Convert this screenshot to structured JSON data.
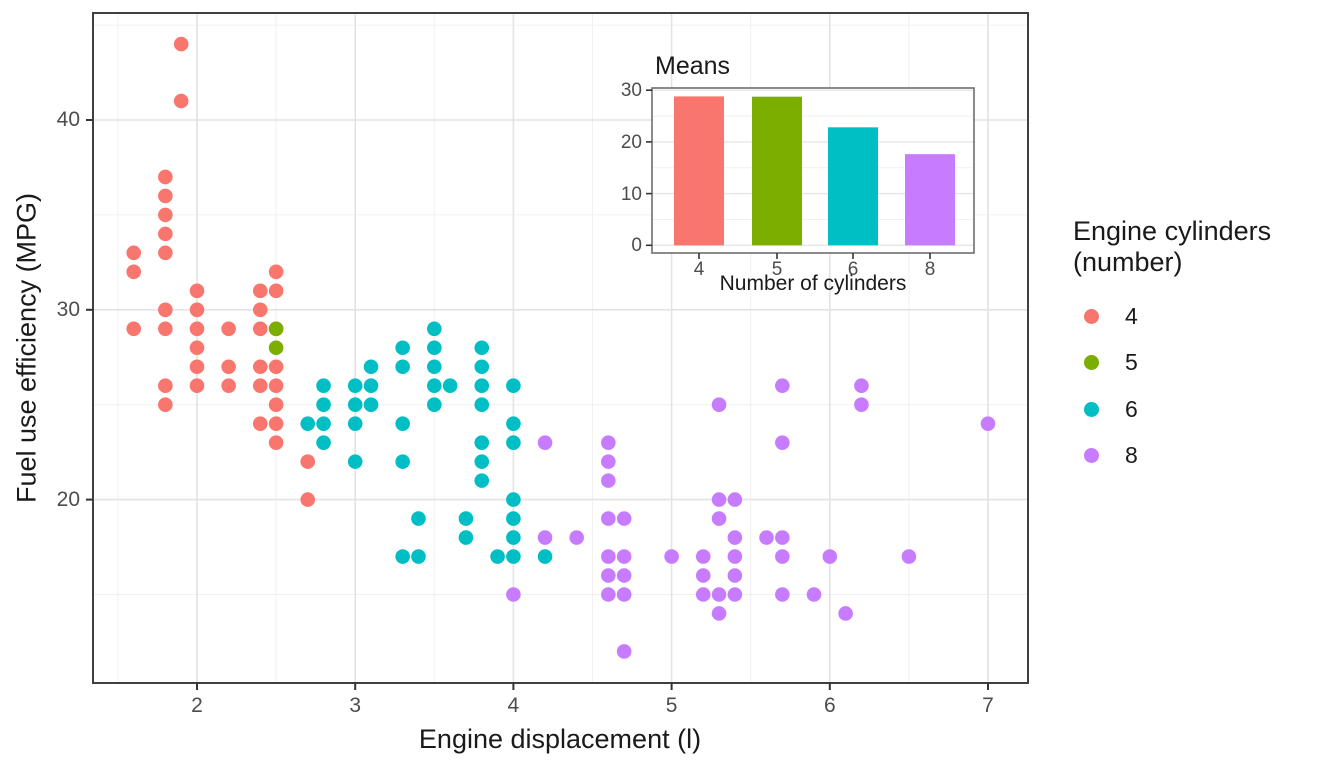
{
  "figure": {
    "background": "#ffffff"
  },
  "palette": {
    "4": "#F8766D",
    "5": "#7CAE00",
    "6": "#00BFC4",
    "8": "#C77CFF"
  },
  "legend": {
    "title_line1": "Engine cylinders",
    "title_line2": "(number)",
    "position": "right",
    "items": [
      {
        "label": "4",
        "color": "#F8766D"
      },
      {
        "label": "5",
        "color": "#7CAE00"
      },
      {
        "label": "6",
        "color": "#00BFC4"
      },
      {
        "label": "8",
        "color": "#C77CFF"
      }
    ]
  },
  "chart_data": [
    {
      "id": "main-scatter",
      "type": "scatter",
      "title": "",
      "xlabel": "Engine displacement (l)",
      "ylabel": "Fuel use efficiency (MPG)",
      "xlim": [
        1.34,
        7.25
      ],
      "ylim": [
        10.3,
        45.6
      ],
      "x_ticks": [
        2,
        3,
        4,
        5,
        6,
        7
      ],
      "x_minor_ticks": [
        1.5,
        2.5,
        3.5,
        4.5,
        5.5,
        6.5
      ],
      "y_ticks": [
        20,
        30,
        40
      ],
      "y_minor_ticks": [
        15,
        25,
        35,
        45
      ],
      "grid": "on",
      "legend_position": "right",
      "series": [
        {
          "name": "4",
          "color": "#F8766D",
          "points": [
            [
              1.6,
              33
            ],
            [
              1.6,
              32
            ],
            [
              1.6,
              29
            ],
            [
              1.8,
              37
            ],
            [
              1.8,
              36
            ],
            [
              1.8,
              35
            ],
            [
              1.8,
              34
            ],
            [
              1.8,
              33
            ],
            [
              1.8,
              30
            ],
            [
              1.8,
              29
            ],
            [
              1.8,
              26
            ],
            [
              1.8,
              25
            ],
            [
              1.9,
              44
            ],
            [
              1.9,
              41
            ],
            [
              2.0,
              31
            ],
            [
              2.0,
              30
            ],
            [
              2.0,
              29
            ],
            [
              2.0,
              28
            ],
            [
              2.0,
              27
            ],
            [
              2.0,
              26
            ],
            [
              2.2,
              29
            ],
            [
              2.2,
              27
            ],
            [
              2.2,
              26
            ],
            [
              2.4,
              31
            ],
            [
              2.4,
              30
            ],
            [
              2.4,
              29
            ],
            [
              2.4,
              27
            ],
            [
              2.4,
              26
            ],
            [
              2.4,
              24
            ],
            [
              2.5,
              32
            ],
            [
              2.5,
              31
            ],
            [
              2.5,
              29
            ],
            [
              2.5,
              27
            ],
            [
              2.5,
              26
            ],
            [
              2.5,
              25
            ],
            [
              2.5,
              24
            ],
            [
              2.5,
              23
            ],
            [
              2.7,
              22
            ],
            [
              2.7,
              20
            ]
          ]
        },
        {
          "name": "5",
          "color": "#7CAE00",
          "points": [
            [
              2.5,
              29
            ],
            [
              2.5,
              28
            ]
          ]
        },
        {
          "name": "6",
          "color": "#00BFC4",
          "points": [
            [
              2.7,
              24
            ],
            [
              2.8,
              26
            ],
            [
              2.8,
              25
            ],
            [
              2.8,
              24
            ],
            [
              2.8,
              23
            ],
            [
              3.0,
              26
            ],
            [
              3.0,
              25
            ],
            [
              3.0,
              24
            ],
            [
              3.0,
              22
            ],
            [
              3.1,
              27
            ],
            [
              3.1,
              26
            ],
            [
              3.1,
              25
            ],
            [
              3.3,
              28
            ],
            [
              3.3,
              27
            ],
            [
              3.3,
              24
            ],
            [
              3.3,
              22
            ],
            [
              3.3,
              17
            ],
            [
              3.4,
              19
            ],
            [
              3.4,
              17
            ],
            [
              3.5,
              29
            ],
            [
              3.5,
              28
            ],
            [
              3.5,
              27
            ],
            [
              3.5,
              26
            ],
            [
              3.5,
              25
            ],
            [
              3.6,
              26
            ],
            [
              3.7,
              19
            ],
            [
              3.7,
              18
            ],
            [
              3.8,
              28
            ],
            [
              3.8,
              27
            ],
            [
              3.8,
              26
            ],
            [
              3.8,
              25
            ],
            [
              3.8,
              23
            ],
            [
              3.8,
              22
            ],
            [
              3.8,
              21
            ],
            [
              3.9,
              17
            ],
            [
              4.0,
              26
            ],
            [
              4.0,
              24
            ],
            [
              4.0,
              23
            ],
            [
              4.0,
              20
            ],
            [
              4.0,
              19
            ],
            [
              4.0,
              18
            ],
            [
              4.0,
              17
            ],
            [
              4.2,
              17
            ]
          ]
        },
        {
          "name": "8",
          "color": "#C77CFF",
          "points": [
            [
              4.0,
              15
            ],
            [
              4.2,
              23
            ],
            [
              4.2,
              18
            ],
            [
              4.4,
              18
            ],
            [
              4.6,
              23
            ],
            [
              4.6,
              22
            ],
            [
              4.6,
              21
            ],
            [
              4.6,
              19
            ],
            [
              4.6,
              17
            ],
            [
              4.6,
              16
            ],
            [
              4.6,
              15
            ],
            [
              4.7,
              19
            ],
            [
              4.7,
              17
            ],
            [
              4.7,
              16
            ],
            [
              4.7,
              15
            ],
            [
              4.7,
              12
            ],
            [
              5.0,
              17
            ],
            [
              5.2,
              17
            ],
            [
              5.2,
              16
            ],
            [
              5.2,
              15
            ],
            [
              5.3,
              25
            ],
            [
              5.3,
              20
            ],
            [
              5.3,
              19
            ],
            [
              5.3,
              15
            ],
            [
              5.3,
              14
            ],
            [
              5.4,
              20
            ],
            [
              5.4,
              18
            ],
            [
              5.4,
              17
            ],
            [
              5.4,
              16
            ],
            [
              5.4,
              15
            ],
            [
              5.6,
              18
            ],
            [
              5.7,
              26
            ],
            [
              5.7,
              23
            ],
            [
              5.7,
              18
            ],
            [
              5.7,
              17
            ],
            [
              5.7,
              15
            ],
            [
              5.9,
              15
            ],
            [
              6.0,
              17
            ],
            [
              6.1,
              14
            ],
            [
              6.2,
              26
            ],
            [
              6.2,
              25
            ],
            [
              6.5,
              17
            ],
            [
              7.0,
              24
            ]
          ]
        }
      ]
    },
    {
      "id": "inset-bar",
      "type": "bar",
      "title": "Means",
      "xlabel": "Number of cylinders",
      "ylabel": "",
      "categories": [
        "4",
        "5",
        "6",
        "8"
      ],
      "values": [
        28.8,
        28.75,
        22.82,
        17.63
      ],
      "colors": [
        "#F8766D",
        "#7CAE00",
        "#00BFC4",
        "#C77CFF"
      ],
      "y_ticks": [
        0,
        10,
        20,
        30
      ],
      "y_minor_ticks": [
        5,
        15,
        25
      ],
      "ylim": [
        0,
        30
      ],
      "grid": "on"
    }
  ]
}
